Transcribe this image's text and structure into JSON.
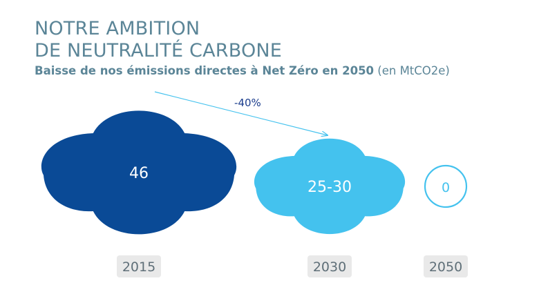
{
  "colors": {
    "title": "#5b8597",
    "year_text": "#5f6f78",
    "year_bg": "#e9e9e9",
    "arrow": "#44c2ee",
    "change_label": "#1a3c8c"
  },
  "header": {
    "title_line1": "NOTRE AMBITION",
    "title_line2": "DE NEUTRALITÉ CARBONE",
    "subtitle_main": "Baisse de nos émissions directes à Net Zéro en 2050",
    "subtitle_unit": "(en MtCO2e)"
  },
  "chart_data": {
    "type": "bubble",
    "unit": "MtCO2e",
    "categories": [
      "2015",
      "2030",
      "2050"
    ],
    "values": [
      46,
      27.5,
      0
    ],
    "value_labels": [
      "46",
      "25-30",
      "0"
    ],
    "colors": [
      "#0a4a96",
      "#44c2ee",
      "#ffffff"
    ],
    "outline_colors": [
      "#0a4a96",
      "#44c2ee",
      "#44c2ee"
    ],
    "annotation": {
      "text": "-40%",
      "from": "2015",
      "to": "2030"
    }
  }
}
